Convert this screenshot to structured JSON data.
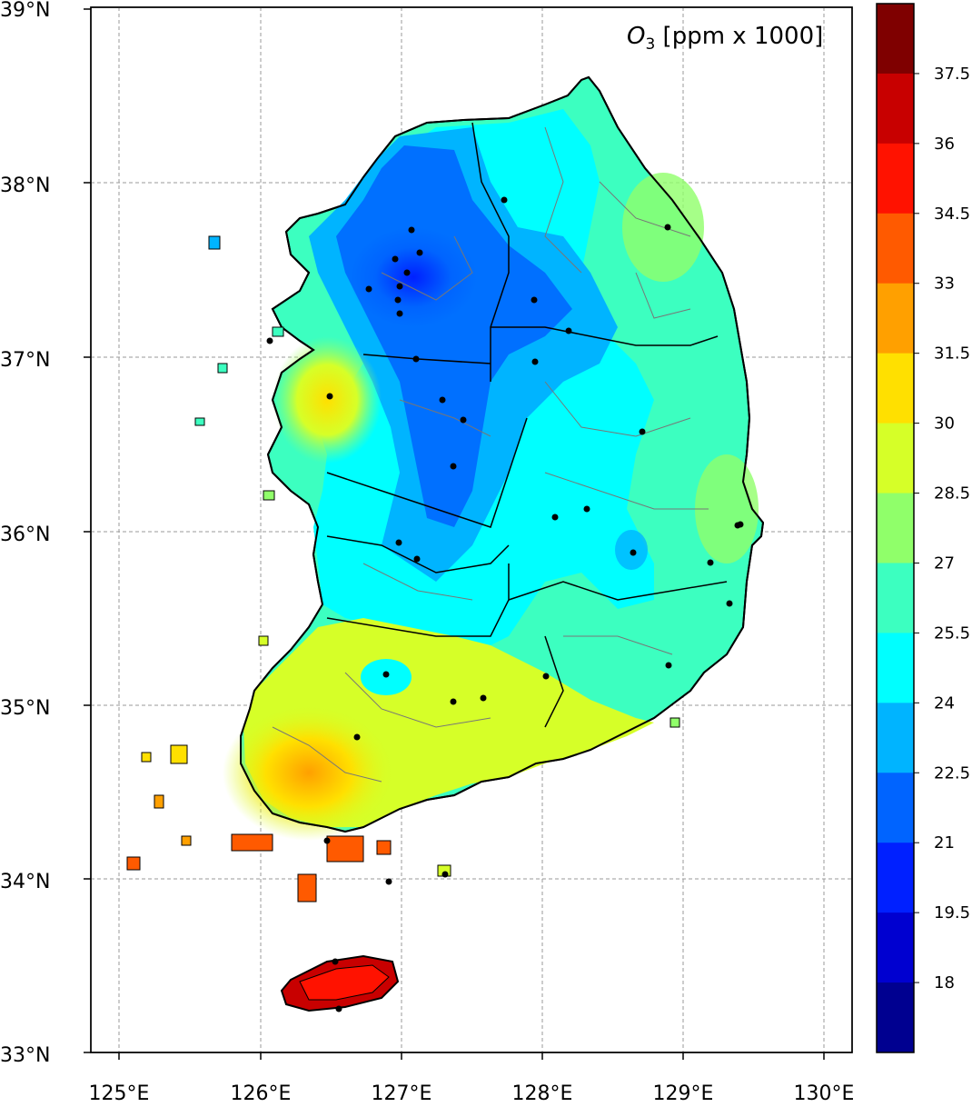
{
  "map": {
    "title_symbol": "O",
    "title_subscript": "3",
    "title_units": " [ppm x 1000]",
    "lat_labels": [
      "39°N",
      "38°N",
      "37°N",
      "36°N",
      "35°N",
      "34°N",
      "33°N"
    ],
    "lon_labels": [
      "125°E",
      "126°E",
      "127°E",
      "128°E",
      "129°E",
      "130°E"
    ],
    "gridlines": true
  },
  "colorbar": {
    "labels": [
      "37.5",
      "36",
      "34.5",
      "33",
      "31.5",
      "30",
      "28.5",
      "27",
      "25.5",
      "24",
      "22.5",
      "21",
      "19.5",
      "18"
    ],
    "colors": [
      "#7f0000",
      "#c80000",
      "#ff1200",
      "#ff5a00",
      "#ffa000",
      "#ffe000",
      "#d6ff28",
      "#90ff6a",
      "#3cffc0",
      "#00ffff",
      "#00b4ff",
      "#0064ff",
      "#0020ff",
      "#0000d0",
      "#000090"
    ]
  },
  "stations_count": 40
}
